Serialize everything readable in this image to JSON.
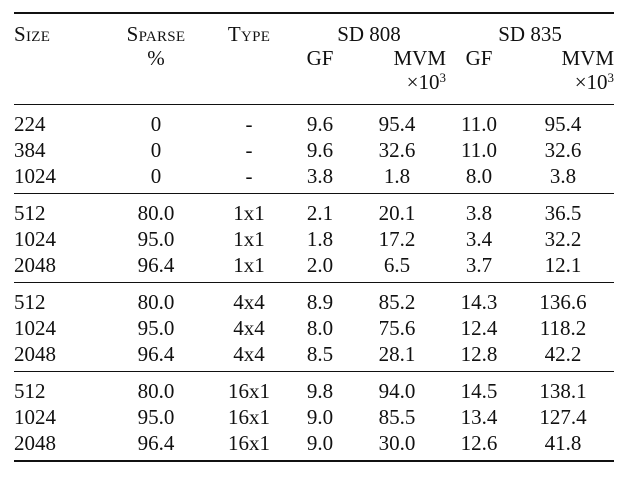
{
  "header": {
    "size": "Size",
    "sparse": "Sparse",
    "sparse_unit": "%",
    "type": "Type",
    "sd808": "SD 808",
    "sd835": "SD 835",
    "gf": "GF",
    "mvm": "MVM",
    "mvm_unit_prefix": "×10",
    "mvm_unit_exp": "3"
  },
  "groups": [
    {
      "rows": [
        {
          "size": "224",
          "sparse": "0",
          "type": "-",
          "gf808": "9.6",
          "mvm808": "95.4",
          "gf835": "11.0",
          "mvm835": "95.4"
        },
        {
          "size": "384",
          "sparse": "0",
          "type": "-",
          "gf808": "9.6",
          "mvm808": "32.6",
          "gf835": "11.0",
          "mvm835": "32.6"
        },
        {
          "size": "1024",
          "sparse": "0",
          "type": "-",
          "gf808": "3.8",
          "mvm808": "1.8",
          "gf835": "8.0",
          "mvm835": "3.8"
        }
      ]
    },
    {
      "rows": [
        {
          "size": "512",
          "sparse": "80.0",
          "type": "1x1",
          "gf808": "2.1",
          "mvm808": "20.1",
          "gf835": "3.8",
          "mvm835": "36.5"
        },
        {
          "size": "1024",
          "sparse": "95.0",
          "type": "1x1",
          "gf808": "1.8",
          "mvm808": "17.2",
          "gf835": "3.4",
          "mvm835": "32.2"
        },
        {
          "size": "2048",
          "sparse": "96.4",
          "type": "1x1",
          "gf808": "2.0",
          "mvm808": "6.5",
          "gf835": "3.7",
          "mvm835": "12.1"
        }
      ]
    },
    {
      "rows": [
        {
          "size": "512",
          "sparse": "80.0",
          "type": "4x4",
          "gf808": "8.9",
          "mvm808": "85.2",
          "gf835": "14.3",
          "mvm835": "136.6"
        },
        {
          "size": "1024",
          "sparse": "95.0",
          "type": "4x4",
          "gf808": "8.0",
          "mvm808": "75.6",
          "gf835": "12.4",
          "mvm835": "118.2"
        },
        {
          "size": "2048",
          "sparse": "96.4",
          "type": "4x4",
          "gf808": "8.5",
          "mvm808": "28.1",
          "gf835": "12.8",
          "mvm835": "42.2"
        }
      ]
    },
    {
      "rows": [
        {
          "size": "512",
          "sparse": "80.0",
          "type": "16x1",
          "gf808": "9.8",
          "mvm808": "94.0",
          "gf835": "14.5",
          "mvm835": "138.1"
        },
        {
          "size": "1024",
          "sparse": "95.0",
          "type": "16x1",
          "gf808": "9.0",
          "mvm808": "85.5",
          "gf835": "13.4",
          "mvm835": "127.4"
        },
        {
          "size": "2048",
          "sparse": "96.4",
          "type": "16x1",
          "gf808": "9.0",
          "mvm808": "30.0",
          "gf835": "12.6",
          "mvm835": "41.8"
        }
      ]
    }
  ]
}
